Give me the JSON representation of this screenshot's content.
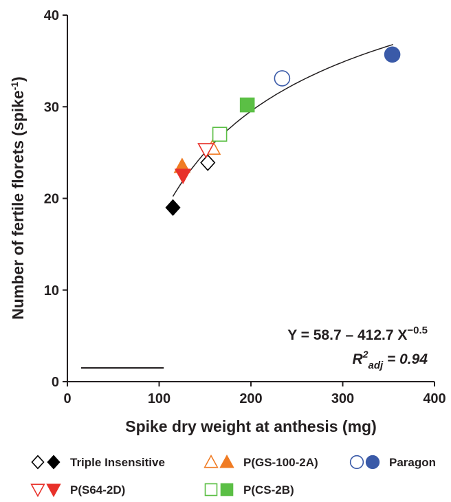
{
  "chart_data": {
    "type": "scatter",
    "x_label": "Spike dry weight at anthesis  (mg)",
    "y_label": {
      "text": "Number of fertile florets (spike",
      "sup": "-1",
      "end": ")"
    },
    "xlim": [
      0,
      400
    ],
    "xticks": [
      0,
      100,
      200,
      300,
      400
    ],
    "ylim": [
      0,
      40
    ],
    "yticks": [
      0,
      10,
      20,
      30,
      40
    ],
    "series": [
      {
        "name": "Triple Insensitive",
        "color": "#000000",
        "marker": "diamond",
        "x": [
          153,
          115
        ],
        "values": [
          23.9,
          19.0
        ]
      },
      {
        "name": "P(GS-100-2A)",
        "color": "#f07b23",
        "marker": "triangle",
        "x": [
          158,
          125
        ],
        "values": [
          25.5,
          23.5
        ]
      },
      {
        "name": "Paragon",
        "color": "#3a5aa8",
        "marker": "circle",
        "x": [
          234,
          354
        ],
        "values": [
          33.1,
          35.7
        ]
      },
      {
        "name": "P(S64-2D)",
        "color": "#e8312a",
        "marker": "triangle-down",
        "x": [
          151,
          126
        ],
        "values": [
          25.3,
          22.5
        ]
      },
      {
        "name": "P(CS-2B)",
        "color": "#5bbf45",
        "marker": "square",
        "x": [
          166,
          196
        ],
        "values": [
          27.0,
          30.2
        ]
      }
    ],
    "fit": {
      "equation": "Y = 58.7 – 412.7 X",
      "exponent": "−0.5",
      "intercept": 58.7,
      "coefficient": -412.7,
      "power": -0.5,
      "x_range": [
        115,
        355
      ]
    },
    "r2": {
      "base": "R",
      "sup": "2",
      "sub": "adj",
      "value": " = 0.94"
    },
    "lsd_bar": {
      "x": [
        15,
        105
      ],
      "y": 1.5
    }
  }
}
